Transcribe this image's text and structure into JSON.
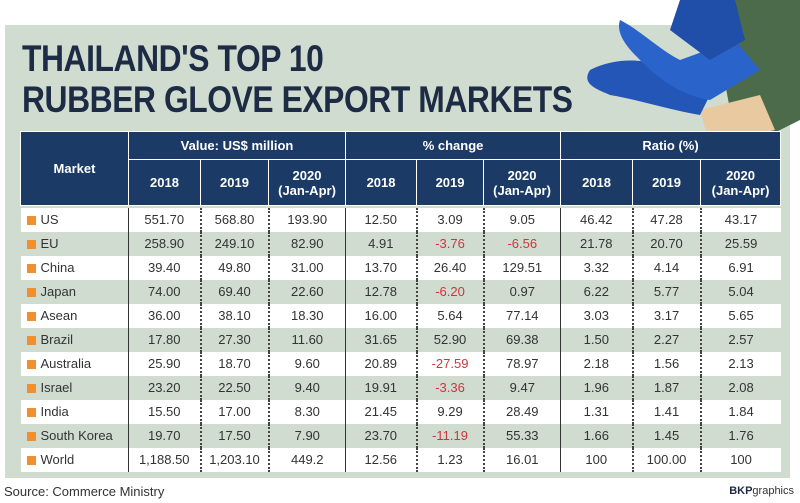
{
  "title_line1": "THAILAND'S TOP 10",
  "title_line2": "RUBBER GLOVE EXPORT MARKETS",
  "source": "Source: Commerce Ministry",
  "credit_bold": "BKP",
  "credit_rest": "graphics",
  "colors": {
    "header": "#1b3b66",
    "panel": "#cfdccf",
    "negative": "#d0343c",
    "marker": "#f0902c",
    "glove": "#2456b8"
  },
  "chart_data": {
    "type": "table",
    "title": "THAILAND'S TOP 10 RUBBER GLOVE EXPORT MARKETS",
    "row_header": "Market",
    "groups": [
      {
        "label": "Value: US$ million"
      },
      {
        "label": "% change"
      },
      {
        "label": "Ratio (%)"
      }
    ],
    "subcolumns": [
      {
        "l1": "2018",
        "l2": ""
      },
      {
        "l1": "2019",
        "l2": ""
      },
      {
        "l1": "2020",
        "l2": "(Jan-Apr)"
      }
    ],
    "rows": [
      {
        "market": "US",
        "values": [
          "551.70",
          "568.80",
          "193.90",
          "12.50",
          "3.09",
          "9.05",
          "46.42",
          "47.28",
          "43.17"
        ]
      },
      {
        "market": "EU",
        "values": [
          "258.90",
          "249.10",
          "82.90",
          "4.91",
          "-3.76",
          "-6.56",
          "21.78",
          "20.70",
          "25.59"
        ]
      },
      {
        "market": "China",
        "values": [
          "39.40",
          "49.80",
          "31.00",
          "13.70",
          "26.40",
          "129.51",
          "3.32",
          "4.14",
          "6.91"
        ]
      },
      {
        "market": "Japan",
        "values": [
          "74.00",
          "69.40",
          "22.60",
          "12.78",
          "-6.20",
          "0.97",
          "6.22",
          "5.77",
          "5.04"
        ]
      },
      {
        "market": "Asean",
        "values": [
          "36.00",
          "38.10",
          "18.30",
          "16.00",
          "5.64",
          "77.14",
          "3.03",
          "3.17",
          "5.65"
        ]
      },
      {
        "market": "Brazil",
        "values": [
          "17.80",
          "27.30",
          "11.60",
          "31.65",
          "52.90",
          "69.38",
          "1.50",
          "2.27",
          "2.57"
        ]
      },
      {
        "market": "Australia",
        "values": [
          "25.90",
          "18.70",
          "9.60",
          "20.89",
          "-27.59",
          "78.97",
          "2.18",
          "1.56",
          "2.13"
        ]
      },
      {
        "market": "Israel",
        "values": [
          "23.20",
          "22.50",
          "9.40",
          "19.91",
          "-3.36",
          "9.47",
          "1.96",
          "1.87",
          "2.08"
        ]
      },
      {
        "market": "India",
        "values": [
          "15.50",
          "17.00",
          "8.30",
          "21.45",
          "9.29",
          "28.49",
          "1.31",
          "1.41",
          "1.84"
        ]
      },
      {
        "market": "South Korea",
        "values": [
          "19.70",
          "17.50",
          "7.90",
          "23.70",
          "-11.19",
          "55.33",
          "1.66",
          "1.45",
          "1.76"
        ]
      },
      {
        "market": "World",
        "values": [
          "1,188.50",
          "1,203.10",
          "449.2",
          "12.56",
          "1.23",
          "16.01",
          "100",
          "100.00",
          "100"
        ]
      }
    ]
  }
}
